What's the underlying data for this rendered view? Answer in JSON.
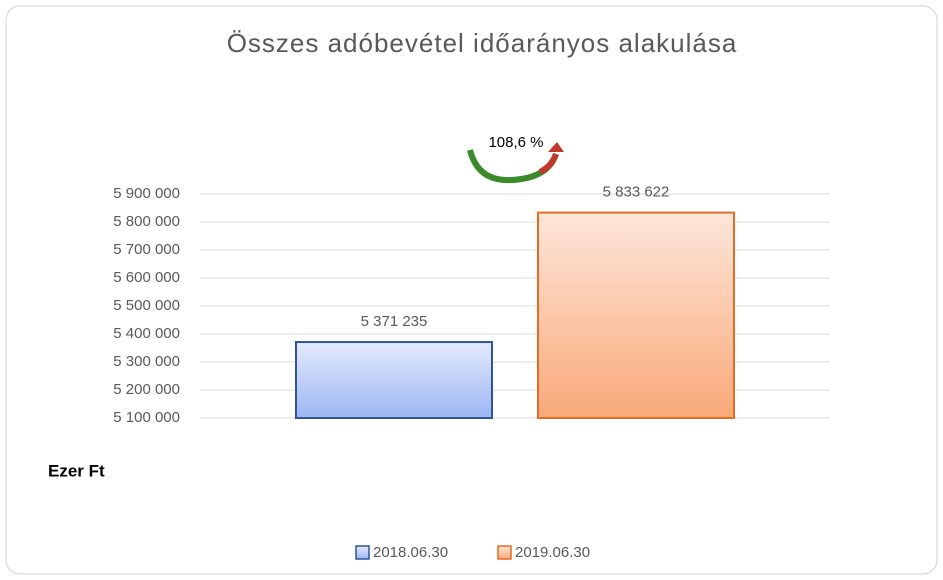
{
  "chart_data": {
    "type": "bar",
    "title": "Összes adóbevétel időarányos alakulása",
    "annotation": "108,6 %",
    "y_axis_label": "Ezer Ft",
    "categories": [
      null
    ],
    "series": [
      {
        "name": "2018.06.30",
        "color": "#2f5597",
        "values": [
          5371235
        ],
        "value_labels": [
          "5 371 235"
        ]
      },
      {
        "name": "2019.06.30",
        "color": "#e46c25",
        "values": [
          5833622
        ],
        "value_labels": [
          "5 833 622"
        ]
      }
    ],
    "ylim": [
      5100000,
      5900000
    ],
    "yticks": [
      {
        "value": 5100000,
        "label": "5 100 000"
      },
      {
        "value": 5200000,
        "label": "5 200 000"
      },
      {
        "value": 5300000,
        "label": "5 300 000"
      },
      {
        "value": 5400000,
        "label": "5 400 000"
      },
      {
        "value": 5500000,
        "label": "5 500 000"
      },
      {
        "value": 5600000,
        "label": "5 600 000"
      },
      {
        "value": 5700000,
        "label": "5 700 000"
      },
      {
        "value": 5800000,
        "label": "5 800 000"
      },
      {
        "value": 5900000,
        "label": "5 900 000"
      }
    ],
    "grid": true,
    "legend": "bottom"
  }
}
